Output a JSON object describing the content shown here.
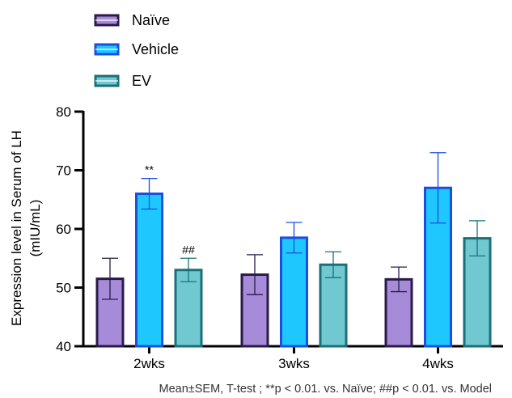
{
  "chart_data": {
    "type": "bar",
    "title": "",
    "xlabel": "",
    "ylabel": "Expression level in Serum of LH",
    "ylabel_unit": "(mIU/mL)",
    "ylim": [
      40,
      80
    ],
    "yticks": [
      40,
      50,
      60,
      70,
      80
    ],
    "categories": [
      "2wks",
      "3wks",
      "4wks"
    ],
    "series": [
      {
        "name": "Naïve",
        "values": [
          51.5,
          52.2,
          51.4
        ],
        "error": [
          3.5,
          3.4,
          2.1
        ],
        "fill": "#A68BD8",
        "stroke": "#2A1A4A",
        "annotations": [
          "",
          "",
          ""
        ]
      },
      {
        "name": "Vehicle",
        "values": [
          66.0,
          58.5,
          67.0
        ],
        "error": [
          2.6,
          2.6,
          6.0
        ],
        "fill": "#1EC8FF",
        "stroke": "#1A4FE0",
        "annotations": [
          "**",
          "",
          ""
        ]
      },
      {
        "name": "EV",
        "values": [
          53.0,
          53.9,
          58.4
        ],
        "error": [
          2.0,
          2.2,
          3.0
        ],
        "fill": "#72C8D0",
        "stroke": "#1A7078",
        "annotations": [
          "##",
          "",
          ""
        ]
      }
    ],
    "legend_position": "top-left",
    "grid": false,
    "footnote": "Mean±SEM, T-test ; **p < 0.01. vs. Naïve; ##p < 0.01. vs. Model"
  }
}
